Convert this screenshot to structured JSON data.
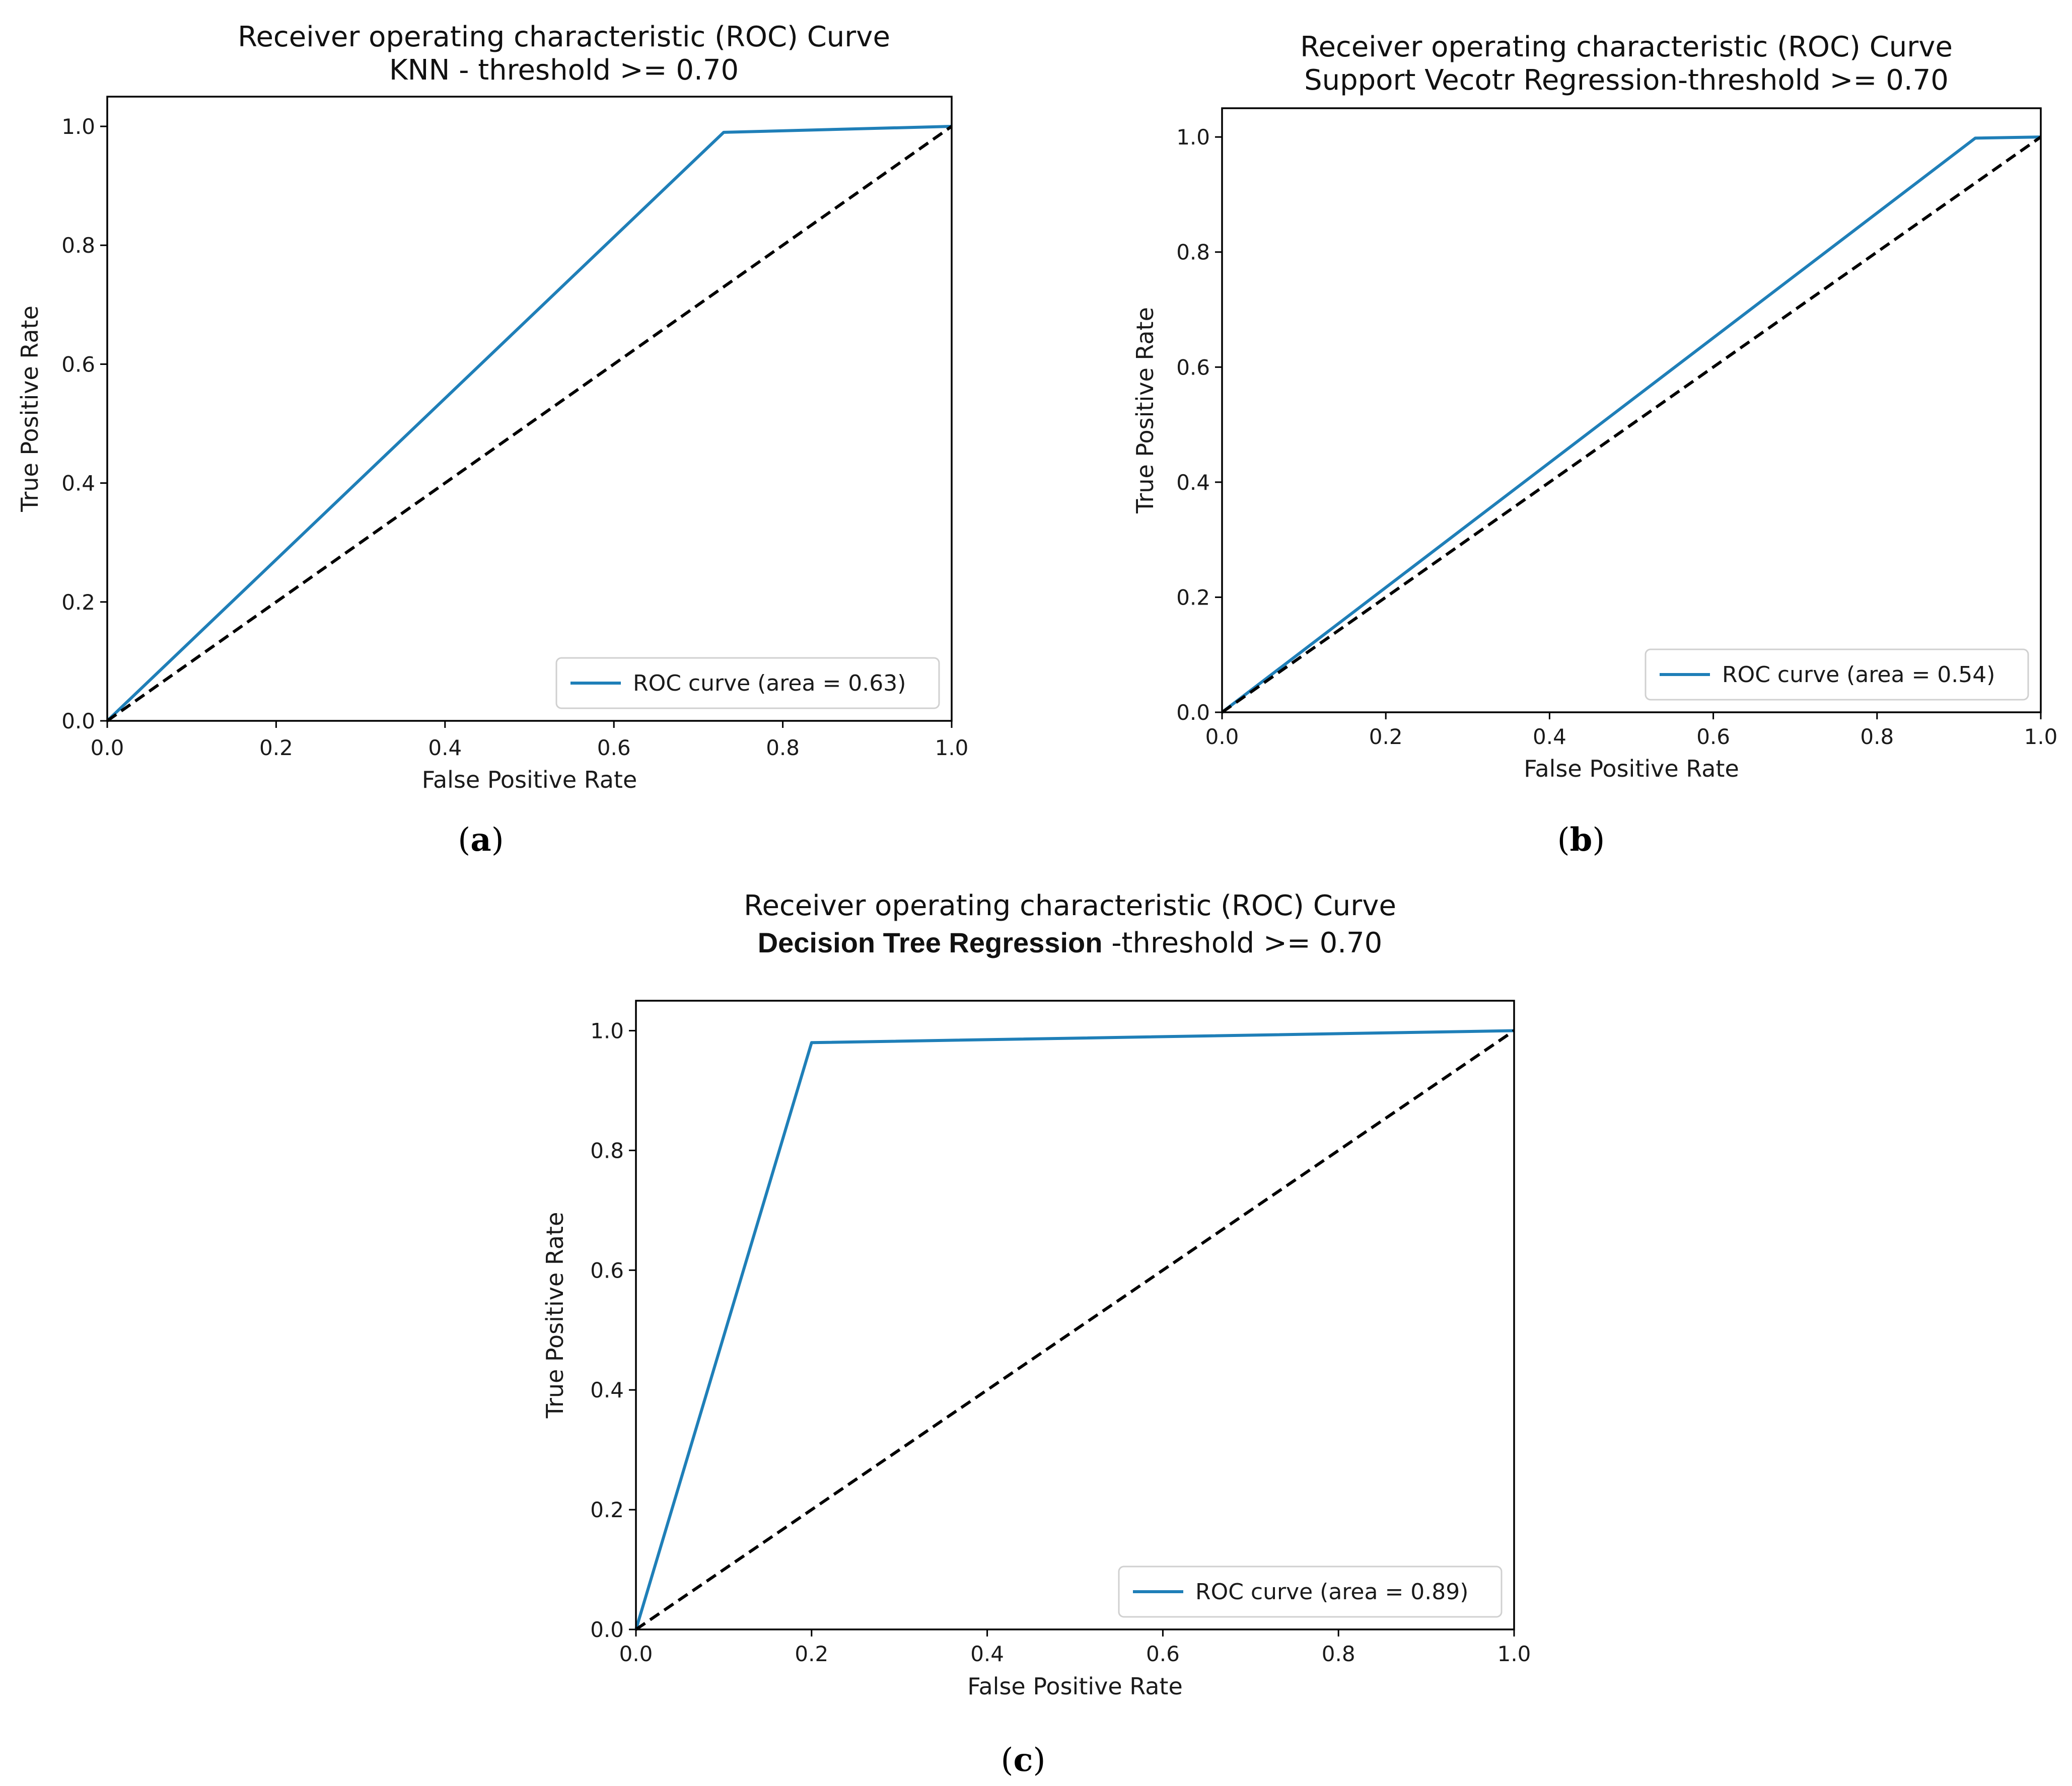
{
  "colors": {
    "roc": "#1f7fb8",
    "diagonal": "#000000",
    "axes": "#000000",
    "legend_border": "#d0d0d0"
  },
  "chart_data": [
    {
      "type": "line",
      "panel_label": "a",
      "title_line1": "Receiver operating characteristic (ROC) Curve",
      "title_line2": "KNN - threshold >= 0.70",
      "xlabel": "False Positive Rate",
      "ylabel": "True Positive Rate",
      "xlim": [
        0,
        1
      ],
      "ylim": [
        0,
        1.05
      ],
      "xticks": [
        "0.0",
        "0.2",
        "0.4",
        "0.6",
        "0.8",
        "1.0"
      ],
      "yticks": [
        "0.0",
        "0.2",
        "0.4",
        "0.6",
        "0.8",
        "1.0"
      ],
      "legend": "ROC curve (area = 0.63)",
      "legend_position": "lower-right",
      "series": [
        {
          "name": "ROC curve (area = 0.63)",
          "style": "solid",
          "x": [
            0,
            0.73,
            1.0
          ],
          "y": [
            0,
            0.99,
            1.0
          ]
        },
        {
          "name": "chance",
          "style": "dashed",
          "x": [
            0,
            1
          ],
          "y": [
            0,
            1
          ]
        }
      ]
    },
    {
      "type": "line",
      "panel_label": "b",
      "title_line1": "Receiver operating characteristic (ROC) Curve",
      "title_line2": "Support Vecotr Regression-threshold >= 0.70",
      "xlabel": "False Positive Rate",
      "ylabel": "True Positive Rate",
      "xlim": [
        0,
        1
      ],
      "ylim": [
        0,
        1.05
      ],
      "xticks": [
        "0.0",
        "0.2",
        "0.4",
        "0.6",
        "0.8",
        "1.0"
      ],
      "yticks": [
        "0.0",
        "0.2",
        "0.4",
        "0.6",
        "0.8",
        "1.0"
      ],
      "legend": "ROC curve (area = 0.54)",
      "legend_position": "lower-right",
      "series": [
        {
          "name": "ROC curve (area = 0.54)",
          "style": "solid",
          "x": [
            0,
            0.92,
            1.0
          ],
          "y": [
            0,
            0.998,
            1.0
          ]
        },
        {
          "name": "chance",
          "style": "dashed",
          "x": [
            0,
            1
          ],
          "y": [
            0,
            1
          ]
        }
      ]
    },
    {
      "type": "line",
      "panel_label": "c",
      "title_line1": "Receiver operating characteristic (ROC) Curve",
      "title_line2_bold": "Decision Tree Regression",
      "title_line2_rest": " -threshold >= 0.70",
      "xlabel": "False Positive Rate",
      "ylabel": "True Positive Rate",
      "xlim": [
        0,
        1
      ],
      "ylim": [
        0,
        1.05
      ],
      "xticks": [
        "0.0",
        "0.2",
        "0.4",
        "0.6",
        "0.8",
        "1.0"
      ],
      "yticks": [
        "0.0",
        "0.2",
        "0.4",
        "0.6",
        "0.8",
        "1.0"
      ],
      "legend": "ROC curve (area = 0.89)",
      "legend_position": "lower-right",
      "series": [
        {
          "name": "ROC curve (area = 0.89)",
          "style": "solid",
          "x": [
            0,
            0.2,
            1.0
          ],
          "y": [
            0,
            0.98,
            1.0
          ]
        },
        {
          "name": "chance",
          "style": "dashed",
          "x": [
            0,
            1
          ],
          "y": [
            0,
            1
          ]
        }
      ]
    }
  ]
}
